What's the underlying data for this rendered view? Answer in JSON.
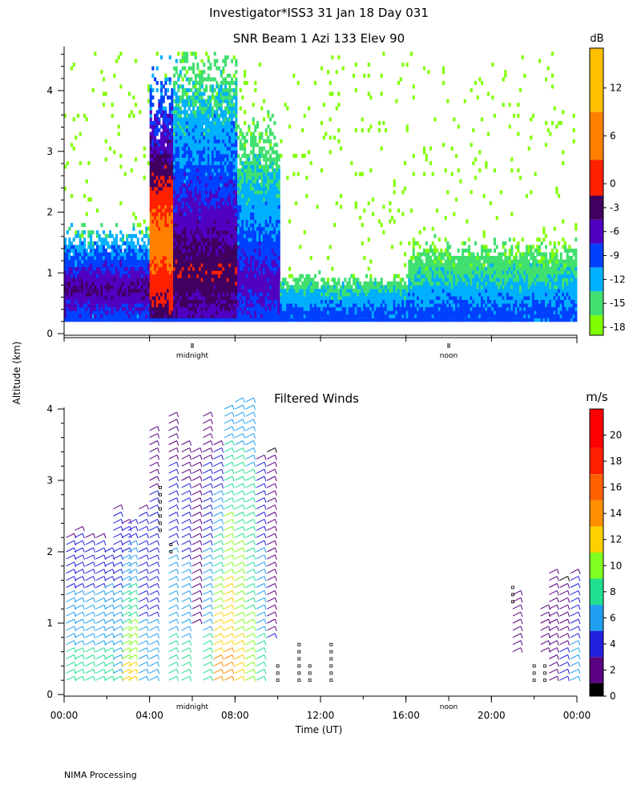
{
  "figure": {
    "title": "Investigator*ISS3  31 Jan 18 Day 031",
    "ylabel": "Altitude (km)",
    "footer": "NIMA Processing"
  },
  "chart_data": [
    {
      "type": "heatmap",
      "title": "SNR Beam 1 Azi 133 Elev 90",
      "ylabel": "Altitude (km)",
      "ylim": [
        0,
        4.7
      ],
      "yticks": [
        "0",
        "1",
        "2",
        "3",
        "4"
      ],
      "xlim": [
        0,
        24
      ],
      "time_markers": [
        {
          "hour": 6,
          "label": "midnight"
        },
        {
          "hour": 18,
          "label": "noon"
        }
      ],
      "colorbar": {
        "unit": "dB",
        "ticks": [
          "12",
          "6",
          "0",
          "-3",
          "-6",
          "-9",
          "-12",
          "-15",
          "-18"
        ],
        "tick_values": [
          12,
          6,
          0,
          -3,
          -6,
          -9,
          -12,
          -15,
          -18
        ],
        "range": [
          -19,
          17
        ],
        "bands": [
          {
            "from": -19,
            "to": -16.5,
            "color": "#80ff00"
          },
          {
            "from": -16.5,
            "to": -13.5,
            "color": "#40e070"
          },
          {
            "from": -13.5,
            "to": -10.5,
            "color": "#00b0ff"
          },
          {
            "from": -10.5,
            "to": -7.5,
            "color": "#0040ff"
          },
          {
            "from": -7.5,
            "to": -4.5,
            "color": "#5000c0"
          },
          {
            "from": -4.5,
            "to": -1.5,
            "color": "#400060"
          },
          {
            "from": -1.5,
            "to": 3,
            "color": "#ff2000"
          },
          {
            "from": 3,
            "to": 9,
            "color": "#ff8000"
          },
          {
            "from": 9,
            "to": 17,
            "color": "#ffc000"
          }
        ]
      },
      "region_estimates": [
        {
          "t0": 0.0,
          "t1": 4.0,
          "top_km": 1.6,
          "core_km": 0.7,
          "core_db": -4
        },
        {
          "t0": 2.4,
          "t1": 3.4,
          "top_km": 2.1,
          "core_km": 1.2,
          "core_db": 0
        },
        {
          "t0": 4.0,
          "t1": 5.0,
          "top_km": 4.0,
          "core_km": 1.5,
          "core_db": 6
        },
        {
          "t0": 5.0,
          "t1": 8.0,
          "top_km": 4.4,
          "core_km": 1.0,
          "core_db": -2
        },
        {
          "t0": 8.0,
          "t1": 10.0,
          "top_km": 3.2,
          "core_km": 0.8,
          "core_db": -6
        },
        {
          "t0": 10.0,
          "t1": 16.0,
          "top_km": 0.9,
          "core_km": 0.3,
          "core_db": -9
        },
        {
          "t0": 16.0,
          "t1": 24.0,
          "top_km": 1.4,
          "core_km": 0.3,
          "core_db": -9
        }
      ]
    },
    {
      "type": "scatter",
      "title": "Filtered Winds",
      "ylabel": "Altitude (km)",
      "xlabel": "Time (UT)",
      "ylim": [
        0,
        4.0
      ],
      "yticks": [
        "0",
        "1",
        "2",
        "3",
        "4"
      ],
      "xlim": [
        0,
        24
      ],
      "xticks": [
        "00:00",
        "04:00",
        "08:00",
        "12:00",
        "16:00",
        "20:00",
        "00:00"
      ],
      "time_markers": [
        {
          "hour": 6,
          "label": "midnight"
        },
        {
          "hour": 18,
          "label": "noon"
        }
      ],
      "colorbar": {
        "unit": "m/s",
        "ticks": [
          "20",
          "18",
          "16",
          "14",
          "12",
          "10",
          "8",
          "6",
          "4",
          "2",
          "0"
        ],
        "tick_values": [
          20,
          18,
          16,
          14,
          12,
          10,
          8,
          6,
          4,
          2,
          0
        ],
        "range": [
          0,
          22
        ],
        "bands": [
          {
            "from": 0,
            "to": 1,
            "color": "#000000"
          },
          {
            "from": 1,
            "to": 3,
            "color": "#5a0080"
          },
          {
            "from": 3,
            "to": 5,
            "color": "#2020e0"
          },
          {
            "from": 5,
            "to": 7,
            "color": "#20a0f0"
          },
          {
            "from": 7,
            "to": 9,
            "color": "#20e090"
          },
          {
            "from": 9,
            "to": 11,
            "color": "#80ff20"
          },
          {
            "from": 11,
            "to": 13,
            "color": "#ffd000"
          },
          {
            "from": 13,
            "to": 15,
            "color": "#ff9000"
          },
          {
            "from": 15,
            "to": 17,
            "color": "#ff6000"
          },
          {
            "from": 17,
            "to": 19,
            "color": "#ff2000"
          },
          {
            "from": 19,
            "to": 22,
            "color": "#ff0000"
          }
        ]
      },
      "barb_columns": [
        {
          "t": 0.1,
          "z0": 0.2,
          "z1": 2.2,
          "speed_bottom": 8,
          "speed_top": 3
        },
        {
          "t": 0.5,
          "z0": 0.2,
          "z1": 2.3,
          "speed_bottom": 8,
          "speed_top": 3
        },
        {
          "t": 1.0,
          "z0": 0.2,
          "z1": 2.2,
          "speed_bottom": 8,
          "speed_top": 3
        },
        {
          "t": 1.5,
          "z0": 0.2,
          "z1": 2.2,
          "speed_bottom": 8,
          "speed_top": 3
        },
        {
          "t": 1.9,
          "z0": 0.2,
          "z1": 2.0,
          "speed_bottom": 8,
          "speed_top": 4
        },
        {
          "t": 2.3,
          "z0": 0.2,
          "z1": 2.6,
          "speed_bottom": 7,
          "speed_top": 3
        },
        {
          "t": 2.7,
          "z0": 0.2,
          "z1": 2.4,
          "speed_bottom": 12,
          "speed_top": 3
        },
        {
          "t": 3.0,
          "z0": 0.2,
          "z1": 2.4,
          "speed_bottom": 12,
          "speed_top": 4
        },
        {
          "t": 3.5,
          "z0": 0.2,
          "z1": 2.6,
          "speed_bottom": 6,
          "speed_top": 3
        },
        {
          "t": 4.0,
          "z0": 0.2,
          "z1": 3.7,
          "speed_bottom": 6,
          "speed_top": 2
        },
        {
          "t": 4.9,
          "z0": 0.2,
          "z1": 3.9,
          "speed_bottom": 8,
          "speed_top": 2
        },
        {
          "t": 5.5,
          "z0": 0.2,
          "z1": 3.5,
          "speed_bottom": 8,
          "speed_top": 2
        },
        {
          "t": 6.0,
          "z0": 1.0,
          "z1": 3.4,
          "speed_bottom": 1,
          "speed_top": 2
        },
        {
          "t": 6.5,
          "z0": 0.2,
          "z1": 3.9,
          "speed_bottom": 8,
          "speed_top": 2
        },
        {
          "t": 7.0,
          "z0": 0.2,
          "z1": 3.5,
          "speed_bottom": 14,
          "speed_top": 3
        },
        {
          "t": 7.5,
          "z0": 0.2,
          "z1": 4.0,
          "speed_bottom": 14,
          "speed_top": 6
        },
        {
          "t": 8.0,
          "z0": 0.2,
          "z1": 4.1,
          "speed_bottom": 12,
          "speed_top": 6
        },
        {
          "t": 8.5,
          "z0": 0.2,
          "z1": 4.1,
          "speed_bottom": 10,
          "speed_top": 6
        },
        {
          "t": 9.0,
          "z0": 0.2,
          "z1": 3.3,
          "speed_bottom": 8,
          "speed_top": 3
        },
        {
          "t": 9.5,
          "z0": 0.8,
          "z1": 3.4,
          "speed_bottom": 3,
          "speed_top": 1
        },
        {
          "t": 21.0,
          "z0": 0.6,
          "z1": 1.4,
          "speed_bottom": 2,
          "speed_top": 2
        },
        {
          "t": 22.3,
          "z0": 0.6,
          "z1": 1.2,
          "speed_bottom": 2,
          "speed_top": 2
        },
        {
          "t": 22.7,
          "z0": 0.2,
          "z1": 1.7,
          "speed_bottom": 1,
          "speed_top": 1
        },
        {
          "t": 23.2,
          "z0": 0.2,
          "z1": 1.6,
          "speed_bottom": 4,
          "speed_top": 1
        },
        {
          "t": 23.7,
          "z0": 0.2,
          "z1": 1.7,
          "speed_bottom": 6,
          "speed_top": 3
        }
      ],
      "calm_columns": [
        {
          "t": 4.5,
          "z0": 2.3,
          "z1": 2.9
        },
        {
          "t": 5.0,
          "z0": 2.0,
          "z1": 2.1
        },
        {
          "t": 10.0,
          "z0": 0.2,
          "z1": 0.4
        },
        {
          "t": 11.0,
          "z0": 0.2,
          "z1": 0.7
        },
        {
          "t": 11.5,
          "z0": 0.2,
          "z1": 0.4
        },
        {
          "t": 12.5,
          "z0": 0.2,
          "z1": 0.7
        },
        {
          "t": 21.0,
          "z0": 1.3,
          "z1": 1.5
        },
        {
          "t": 22.0,
          "z0": 0.2,
          "z1": 0.4
        },
        {
          "t": 22.5,
          "z0": 0.2,
          "z1": 0.4
        }
      ]
    }
  ]
}
